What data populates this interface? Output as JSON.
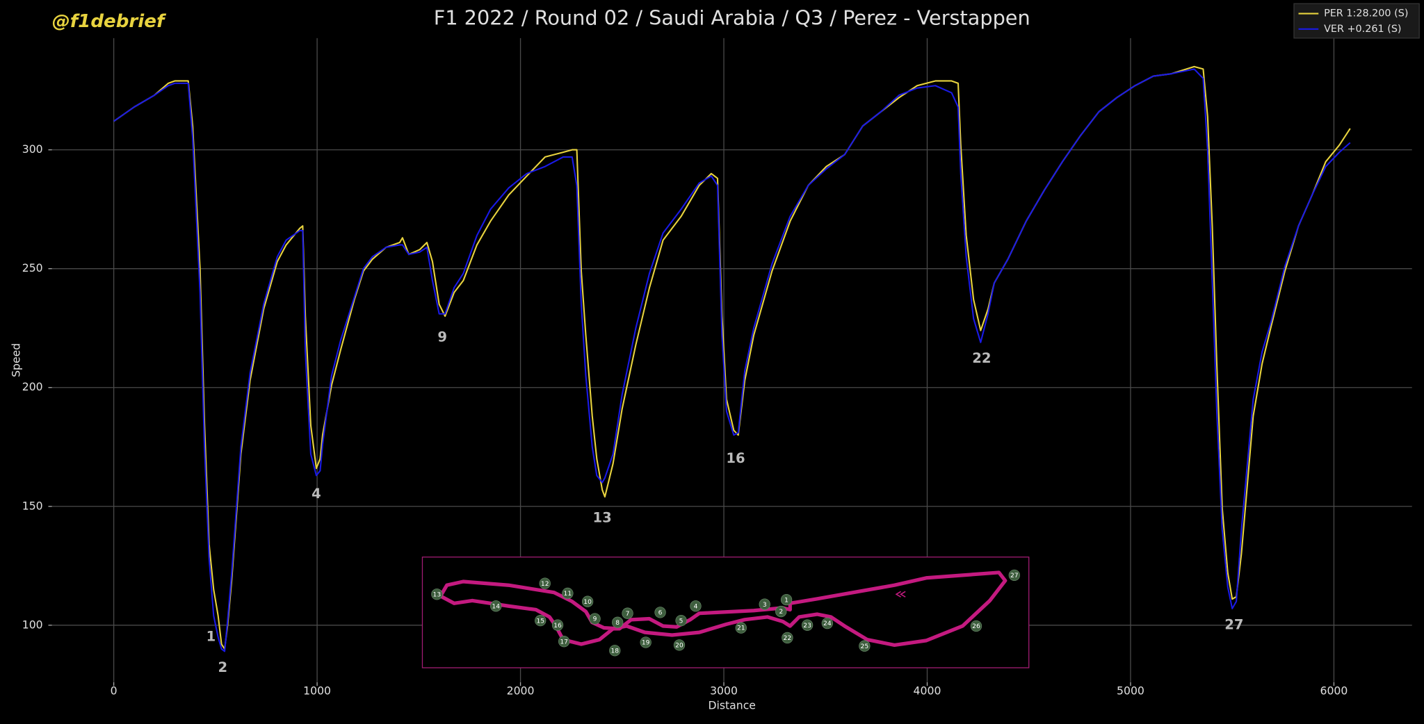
{
  "watermark": "@f1debrief",
  "chart_data": {
    "type": "line",
    "title": "F1 2022 / Round 02 / Saudi Arabia / Q3 / Perez - Verstappen",
    "x_label": "Distance",
    "y_label": "Speed",
    "x": [
      0,
      100,
      200,
      268,
      300,
      366,
      388,
      424,
      446,
      469,
      491,
      513,
      530,
      545,
      560,
      580,
      625,
      670,
      737,
      804,
      848,
      915,
      929,
      942,
      969,
      996,
      1015,
      1027,
      1071,
      1116,
      1183,
      1228,
      1272,
      1339,
      1406,
      1420,
      1451,
      1504,
      1540,
      1567,
      1600,
      1629,
      1674,
      1719,
      1786,
      1853,
      1942,
      2031,
      2121,
      2210,
      2254,
      2277,
      2299,
      2321,
      2353,
      2375,
      2402,
      2415,
      2455,
      2500,
      2567,
      2634,
      2701,
      2790,
      2879,
      2938,
      2969,
      2991,
      3013,
      3049,
      3071,
      3103,
      3147,
      3237,
      3326,
      3415,
      3504,
      3594,
      3683,
      3772,
      3862,
      3951,
      4040,
      4120,
      4152,
      4165,
      4192,
      4228,
      4263,
      4299,
      4330,
      4397,
      4487,
      4576,
      4665,
      4754,
      4844,
      4933,
      5022,
      5112,
      5201,
      5313,
      5357,
      5379,
      5402,
      5424,
      5451,
      5478,
      5500,
      5520,
      5545,
      5603,
      5647,
      5692,
      5759,
      5826,
      5893,
      5960,
      6027,
      6080
    ],
    "series": [
      {
        "name": "PER 1:28.200 (S)",
        "color": "#e8d33f",
        "values": [
          312,
          318,
          323,
          328,
          329,
          329,
          310,
          250,
          185,
          134,
          115,
          104,
          92,
          90,
          100,
          119,
          172,
          203,
          233,
          253,
          260,
          267,
          268,
          230,
          184,
          166,
          170,
          180,
          201,
          216,
          237,
          249,
          254,
          259,
          261,
          263,
          256,
          258,
          261,
          253,
          235,
          230,
          240,
          245,
          260,
          270,
          281,
          289,
          297,
          299,
          300,
          300,
          249,
          222,
          188,
          170,
          157,
          154,
          168,
          191,
          218,
          242,
          262,
          272,
          285,
          290,
          288,
          230,
          195,
          182,
          180,
          203,
          222,
          249,
          270,
          285,
          293,
          298,
          310,
          316,
          322,
          327,
          329,
          329,
          328,
          302,
          264,
          237,
          224,
          233,
          244,
          254,
          270,
          283,
          295,
          306,
          316,
          322,
          327,
          331,
          332,
          335,
          334,
          314,
          268,
          210,
          149,
          122,
          111,
          112,
          130,
          188,
          210,
          226,
          249,
          268,
          281,
          295,
          302,
          309
        ]
      },
      {
        "name": "VER +0.261 (S)",
        "color": "#1a1ae6",
        "values": [
          312,
          318,
          323,
          327,
          328,
          328,
          305,
          240,
          175,
          128,
          104,
          95,
          90,
          89,
          102,
          122,
          175,
          206,
          235,
          255,
          262,
          266,
          266,
          215,
          172,
          163,
          165,
          176,
          205,
          220,
          238,
          250,
          255,
          259,
          260,
          260,
          256,
          257,
          259,
          245,
          231,
          231,
          242,
          248,
          264,
          275,
          284,
          290,
          293,
          297,
          297,
          285,
          235,
          205,
          175,
          163,
          160,
          162,
          172,
          197,
          225,
          248,
          265,
          275,
          286,
          289,
          285,
          222,
          190,
          180,
          181,
          207,
          225,
          252,
          272,
          285,
          292,
          298,
          310,
          316,
          323,
          326,
          327,
          324,
          318,
          290,
          255,
          229,
          219,
          231,
          244,
          254,
          270,
          283,
          295,
          306,
          316,
          322,
          327,
          331,
          332,
          334,
          330,
          300,
          245,
          190,
          140,
          116,
          107,
          110,
          140,
          195,
          215,
          228,
          251,
          268,
          281,
          293,
          299,
          303
        ]
      }
    ],
    "xlim": [
      -304,
      6384
    ],
    "ylim": [
      76,
      347
    ],
    "xticks": [
      0,
      1000,
      2000,
      3000,
      4000,
      5000,
      6000
    ],
    "yticks": [
      100,
      150,
      200,
      250,
      300
    ],
    "grid": true,
    "legend": "upper right",
    "annotations": [
      {
        "text": "1",
        "x": 478,
        "y": 95
      },
      {
        "text": "2",
        "x": 536,
        "y": 82
      },
      {
        "text": "4",
        "x": 996,
        "y": 155
      },
      {
        "text": "9",
        "x": 1616,
        "y": 221
      },
      {
        "text": "13",
        "x": 2402,
        "y": 145
      },
      {
        "text": "16",
        "x": 3058,
        "y": 170
      },
      {
        "text": "22",
        "x": 4268,
        "y": 212
      },
      {
        "text": "27",
        "x": 5509,
        "y": 100
      }
    ],
    "track_corners": [
      1,
      2,
      3,
      4,
      5,
      6,
      7,
      8,
      9,
      10,
      11,
      12,
      13,
      14,
      15,
      16,
      17,
      18,
      19,
      20,
      21,
      22,
      23,
      24,
      25,
      26,
      27
    ]
  }
}
